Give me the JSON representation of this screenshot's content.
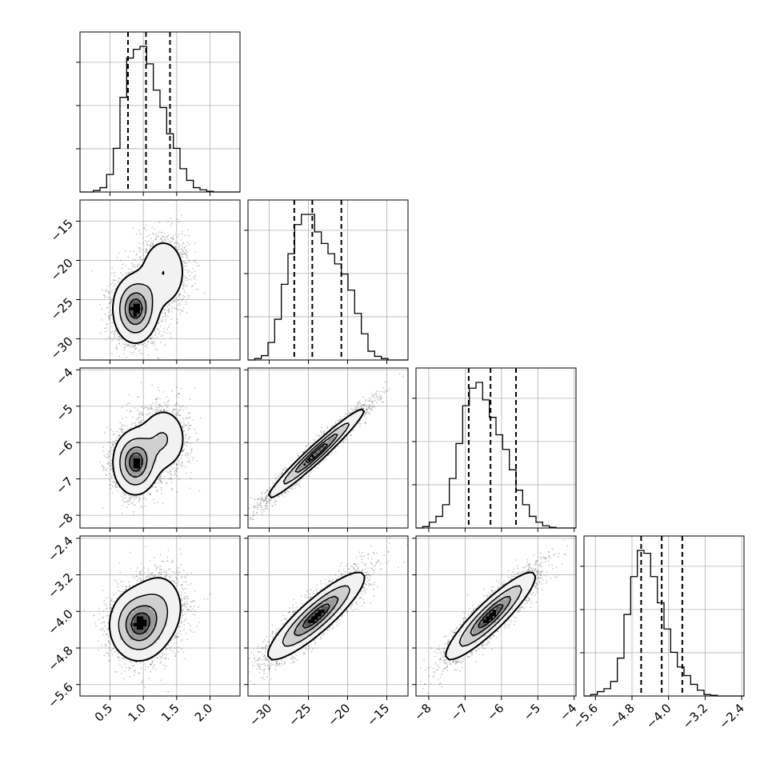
{
  "chart_data": {
    "type": "corner",
    "grid": true,
    "parameters": [
      {
        "range": [
          0.05,
          2.45
        ],
        "ticks": [
          {
            "v": 0.5,
            "label": "0.5"
          },
          {
            "v": 1.0,
            "label": "1.0"
          },
          {
            "v": 1.5,
            "label": "1.5"
          },
          {
            "v": 2.0,
            "label": "2.0"
          }
        ],
        "mean": 0.97,
        "sd": 0.26,
        "quantiles": [
          0.77,
          1.04,
          1.4
        ],
        "histogram": [
          0,
          0,
          0.01,
          0.03,
          0.12,
          0.3,
          0.65,
          0.92,
          0.98,
          1.0,
          0.88,
          0.7,
          0.58,
          0.4,
          0.3,
          0.16,
          0.08,
          0.03,
          0.015,
          0.005,
          0,
          0,
          0,
          0
        ]
      },
      {
        "range": [
          -32.7,
          -12.3
        ],
        "ticks": [
          {
            "v": -30,
            "label": "−30"
          },
          {
            "v": -25,
            "label": "−25"
          },
          {
            "v": -20,
            "label": "−20"
          },
          {
            "v": -15,
            "label": "−15"
          }
        ],
        "mean": -24.0,
        "sd": 3.1,
        "quantiles": [
          -26.8,
          -24.5,
          -20.8
        ],
        "histogram": [
          0,
          0.01,
          0.03,
          0.12,
          0.28,
          0.52,
          0.73,
          0.93,
          1.0,
          1.0,
          0.88,
          0.8,
          0.73,
          0.66,
          0.59,
          0.48,
          0.32,
          0.18,
          0.06,
          0.025,
          0.01,
          0,
          0,
          0
        ]
      },
      {
        "range": [
          -8.35,
          -3.95
        ],
        "ticks": [
          {
            "v": -8,
            "label": "−8"
          },
          {
            "v": -7,
            "label": "−7"
          },
          {
            "v": -6,
            "label": "−6"
          },
          {
            "v": -5,
            "label": "−5"
          },
          {
            "v": -4,
            "label": "−4"
          }
        ],
        "mean": -6.3,
        "sd": 0.62,
        "quantiles": [
          -6.9,
          -6.3,
          -5.6
        ],
        "histogram": [
          0,
          0.01,
          0.04,
          0.08,
          0.16,
          0.34,
          0.58,
          0.84,
          0.96,
          1.0,
          0.88,
          0.76,
          0.64,
          0.54,
          0.4,
          0.26,
          0.16,
          0.08,
          0.04,
          0.015,
          0.005,
          0,
          0,
          0
        ]
      },
      {
        "range": [
          -5.85,
          -2.35
        ],
        "ticks": [
          {
            "v": -5.6,
            "label": "−5.6"
          },
          {
            "v": -4.8,
            "label": "−4.8"
          },
          {
            "v": -4.0,
            "label": "−4.0"
          },
          {
            "v": -3.2,
            "label": "−3.2"
          },
          {
            "v": -2.4,
            "label": "−2.4"
          }
        ],
        "mean": -4.1,
        "sd": 0.48,
        "quantiles": [
          -4.6,
          -4.15,
          -3.7
        ],
        "histogram": [
          0,
          0.01,
          0.03,
          0.05,
          0.1,
          0.26,
          0.56,
          0.82,
          1.0,
          0.98,
          0.82,
          0.64,
          0.46,
          0.3,
          0.2,
          0.14,
          0.08,
          0.04,
          0.01,
          0.005,
          0,
          0,
          0,
          0
        ]
      }
    ],
    "panels": [
      {
        "xi": 0,
        "yi": 1,
        "modes": [
          {
            "w": 0.65,
            "mx": 0.88,
            "my": -26.2,
            "sx": 0.17,
            "sy": 2.2
          },
          {
            "w": 0.35,
            "mx": 1.3,
            "my": -21.5,
            "sx": 0.2,
            "sy": 2.6
          }
        ]
      },
      {
        "xi": 0,
        "yi": 2,
        "modes": [
          {
            "w": 0.65,
            "mx": 0.88,
            "my": -6.55,
            "sx": 0.17,
            "sy": 0.45
          },
          {
            "w": 0.35,
            "mx": 1.3,
            "my": -5.9,
            "sx": 0.2,
            "sy": 0.5
          }
        ]
      },
      {
        "xi": 0,
        "yi": 3,
        "modes": [
          {
            "w": 0.7,
            "mx": 0.92,
            "my": -4.3,
            "sx": 0.22,
            "sy": 0.4
          },
          {
            "w": 0.3,
            "mx": 1.25,
            "my": -3.9,
            "sx": 0.22,
            "sy": 0.45
          }
        ]
      },
      {
        "xi": 1,
        "yi": 2,
        "modes": [
          {
            "w": 1.0,
            "mx": -24.0,
            "my": -6.3,
            "sx": 3.1,
            "sy": 0.62,
            "r": 0.97
          }
        ]
      },
      {
        "xi": 1,
        "yi": 3,
        "modes": [
          {
            "w": 1.0,
            "mx": -24.0,
            "my": -4.1,
            "sx": 3.1,
            "sy": 0.48,
            "r": 0.88
          }
        ]
      },
      {
        "xi": 2,
        "yi": 3,
        "modes": [
          {
            "w": 1.0,
            "mx": -6.3,
            "my": -4.1,
            "sx": 0.62,
            "sy": 0.48,
            "r": 0.9
          }
        ]
      }
    ]
  }
}
